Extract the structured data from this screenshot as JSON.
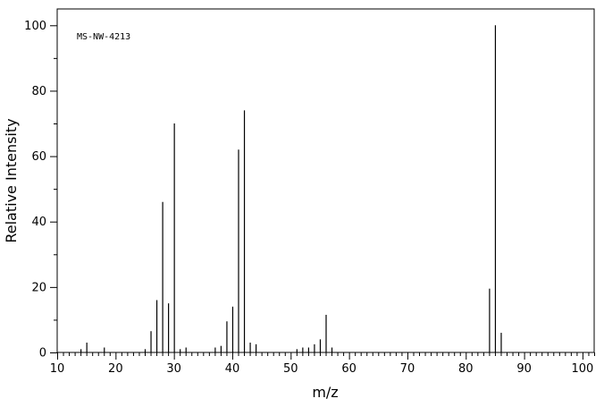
{
  "chart_data": {
    "type": "bar",
    "title": "",
    "annotation": "MS-NW-4213",
    "xlabel": "m/z",
    "ylabel": "Relative Intensity",
    "xlim": [
      10,
      102
    ],
    "ylim": [
      0,
      105
    ],
    "xticks_major": [
      10,
      20,
      30,
      40,
      50,
      60,
      70,
      80,
      90,
      100
    ],
    "yticks_major": [
      0,
      20,
      40,
      60,
      80,
      100
    ],
    "grid": false,
    "legend": "none",
    "peaks": [
      {
        "mz": 14,
        "intensity": 1.0
      },
      {
        "mz": 15,
        "intensity": 3.0
      },
      {
        "mz": 18,
        "intensity": 1.5
      },
      {
        "mz": 25,
        "intensity": 1.0
      },
      {
        "mz": 26,
        "intensity": 6.5
      },
      {
        "mz": 27,
        "intensity": 16.0
      },
      {
        "mz": 28,
        "intensity": 46.0
      },
      {
        "mz": 29,
        "intensity": 15.0
      },
      {
        "mz": 30,
        "intensity": 70.0
      },
      {
        "mz": 31,
        "intensity": 1.0
      },
      {
        "mz": 32,
        "intensity": 1.5
      },
      {
        "mz": 37,
        "intensity": 1.5
      },
      {
        "mz": 38,
        "intensity": 2.0
      },
      {
        "mz": 39,
        "intensity": 9.5
      },
      {
        "mz": 40,
        "intensity": 14.0
      },
      {
        "mz": 41,
        "intensity": 62.0
      },
      {
        "mz": 42,
        "intensity": 74.0
      },
      {
        "mz": 43,
        "intensity": 3.0
      },
      {
        "mz": 44,
        "intensity": 2.5
      },
      {
        "mz": 51,
        "intensity": 1.0
      },
      {
        "mz": 52,
        "intensity": 1.5
      },
      {
        "mz": 53,
        "intensity": 1.5
      },
      {
        "mz": 54,
        "intensity": 2.5
      },
      {
        "mz": 55,
        "intensity": 4.0
      },
      {
        "mz": 56,
        "intensity": 11.5
      },
      {
        "mz": 57,
        "intensity": 1.5
      },
      {
        "mz": 84,
        "intensity": 19.5
      },
      {
        "mz": 85,
        "intensity": 100.0
      },
      {
        "mz": 86,
        "intensity": 6.0
      }
    ]
  }
}
